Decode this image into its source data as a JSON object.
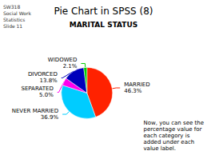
{
  "chart_data": {
    "type": "pie",
    "title": "Pie Chart in SPSS (8)",
    "subtitle": "MARITAL STATUS",
    "categories": [
      "MARRIED",
      "NEVER MARRIED",
      "SEPARATED",
      "DIVORCED",
      "WIDOWED"
    ],
    "values": [
      46.3,
      36.9,
      5.0,
      13.8,
      2.1
    ],
    "value_labels": [
      "46.3%",
      "36.9%",
      "5.0%",
      "13.8%",
      "2.1%"
    ],
    "colors": [
      "#ff2200",
      "#00ccff",
      "#ff00ee",
      "#0000bb",
      "#00cc00"
    ],
    "data_labels": true,
    "annotations": [
      "SW318\nSocial Work\nStatistics\nSlide 11",
      "Now, you can see the\npercentage value for\neach category is\nadded under each\nvalue label."
    ]
  }
}
